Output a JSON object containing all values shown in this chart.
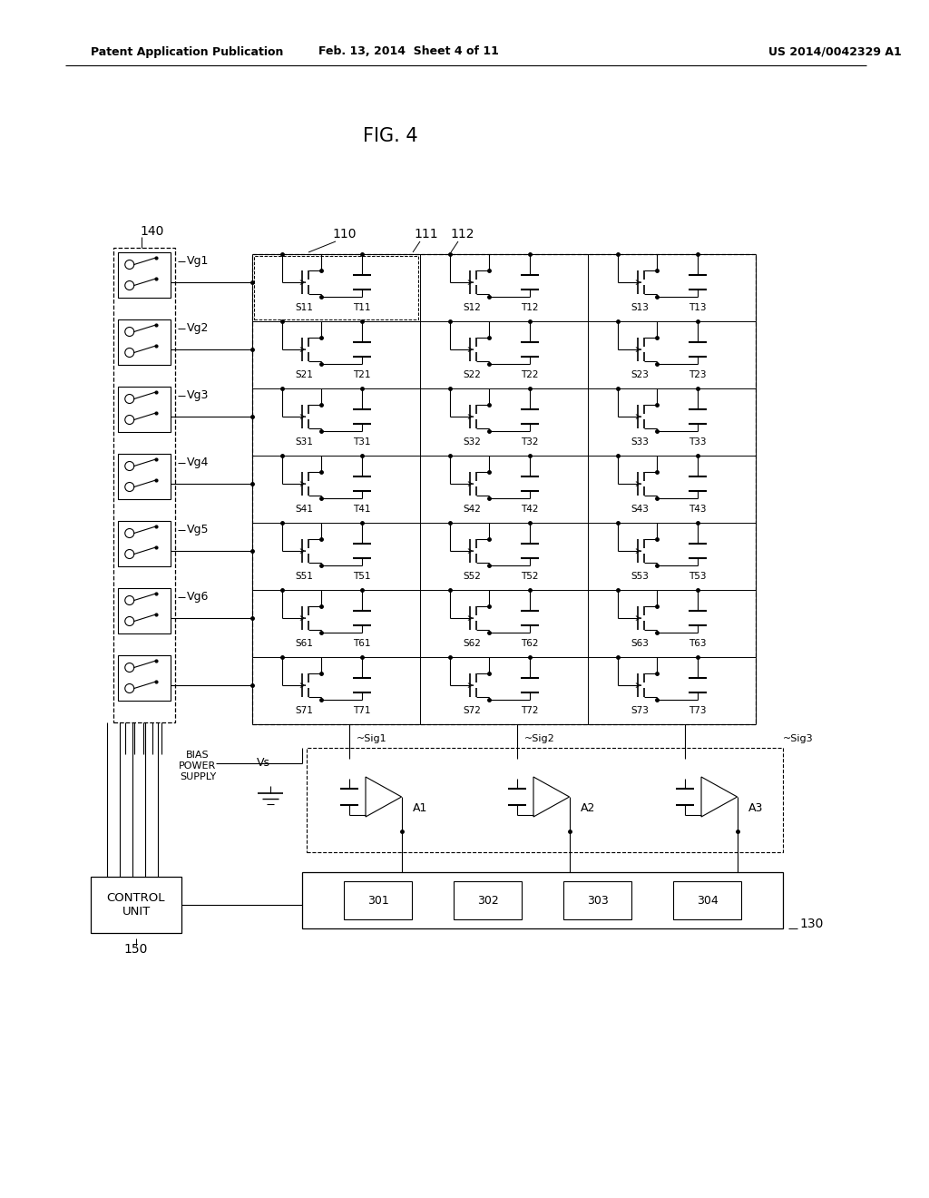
{
  "title": "FIG. 4",
  "header_left": "Patent Application Publication",
  "header_mid": "Feb. 13, 2014  Sheet 4 of 11",
  "header_right": "US 2014/0042329 A1",
  "bg_color": "#ffffff",
  "vg_labels": [
    "Vg1",
    "Vg2",
    "Vg3",
    "Vg4",
    "Vg5",
    "Vg6"
  ],
  "cell_row_labels": [
    [
      [
        "S11",
        "T11"
      ],
      [
        "S12",
        "T12"
      ],
      [
        "S13",
        "T13"
      ]
    ],
    [
      [
        "S21",
        "T21"
      ],
      [
        "S22",
        "T22"
      ],
      [
        "S23",
        "T23"
      ]
    ],
    [
      [
        "S31",
        "T31"
      ],
      [
        "S32",
        "T32"
      ],
      [
        "S33",
        "T33"
      ]
    ],
    [
      [
        "S41",
        "T41"
      ],
      [
        "S42",
        "T42"
      ],
      [
        "S43",
        "T43"
      ]
    ],
    [
      [
        "S51",
        "T51"
      ],
      [
        "S52",
        "T52"
      ],
      [
        "S53",
        "T53"
      ]
    ],
    [
      [
        "S61",
        "T61"
      ],
      [
        "S62",
        "T62"
      ],
      [
        "S63",
        "T63"
      ]
    ],
    [
      [
        "S71",
        "T71"
      ],
      [
        "S72",
        "T72"
      ],
      [
        "S73",
        "T73"
      ]
    ]
  ],
  "amp_labels": [
    "~A1",
    "~A2",
    "~A3"
  ],
  "readout_labels": [
    "301",
    "302",
    "303",
    "304"
  ],
  "label_140": "140",
  "label_110": "110",
  "label_111": "111",
  "label_112": "112",
  "label_150": "150",
  "label_130": "130",
  "label_vs": "Vs",
  "label_sig1": "~Sig1",
  "label_sig2": "~Sig2",
  "label_sig3": "~Sig3",
  "label_bias": "BIAS\nPOWER\nSUPPLY",
  "label_control": "CONTROL\nUNIT"
}
